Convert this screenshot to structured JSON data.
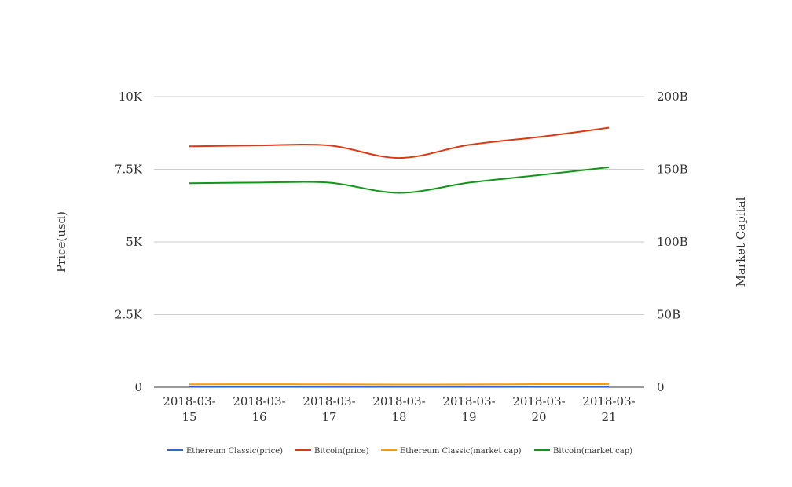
{
  "chart_data": {
    "type": "line",
    "title": "",
    "categories": [
      "2018-03-15",
      "2018-03-16",
      "2018-03-17",
      "2018-03-18",
      "2018-03-19",
      "2018-03-20",
      "2018-03-21"
    ],
    "x_tick_lines": [
      [
        "2018-03-",
        "15"
      ],
      [
        "2018-03-",
        "16"
      ],
      [
        "2018-03-",
        "17"
      ],
      [
        "2018-03-",
        "18"
      ],
      [
        "2018-03-",
        "19"
      ],
      [
        "2018-03-",
        "20"
      ],
      [
        "2018-03-",
        "21"
      ]
    ],
    "y_left": {
      "label": "Price(usd)",
      "range": [
        0,
        10000
      ],
      "ticks": [
        0,
        2500,
        5000,
        7500,
        10000
      ],
      "tick_labels": [
        "0",
        "2.5K",
        "5K",
        "7.5K",
        "10K"
      ]
    },
    "y_right": {
      "label": "Market Capital",
      "range": [
        0,
        200000000000
      ],
      "ticks": [
        0,
        50000000000,
        100000000000,
        150000000000,
        200000000000
      ],
      "tick_labels": [
        "0",
        "50B",
        "100B",
        "150B",
        "200B"
      ]
    },
    "grid": true,
    "legend_position": "bottom",
    "series": [
      {
        "name": "Ethereum Classic(price)",
        "axis": "left",
        "color": "#3366cc",
        "values": [
          19.5,
          19.8,
          19.2,
          18.4,
          18.9,
          19.9,
          20.3
        ]
      },
      {
        "name": "Bitcoin(price)",
        "axis": "right",
        "color": "#dc3912",
        "values": [
          165800000000,
          166400000000,
          166400000000,
          157800000000,
          166800000000,
          172200000000,
          178600000000
        ]
      },
      {
        "name": "Ethereum Classic(market cap)",
        "axis": "right",
        "color": "#ff9900",
        "values": [
          2000000000,
          2100000000,
          2000000000,
          1900000000,
          1950000000,
          2150000000,
          2200000000
        ]
      },
      {
        "name": "Bitcoin(market cap)",
        "axis": "right",
        "color": "#109618",
        "values": [
          140400000000,
          140900000000,
          140800000000,
          133800000000,
          140800000000,
          146000000000,
          151400000000
        ]
      }
    ]
  }
}
